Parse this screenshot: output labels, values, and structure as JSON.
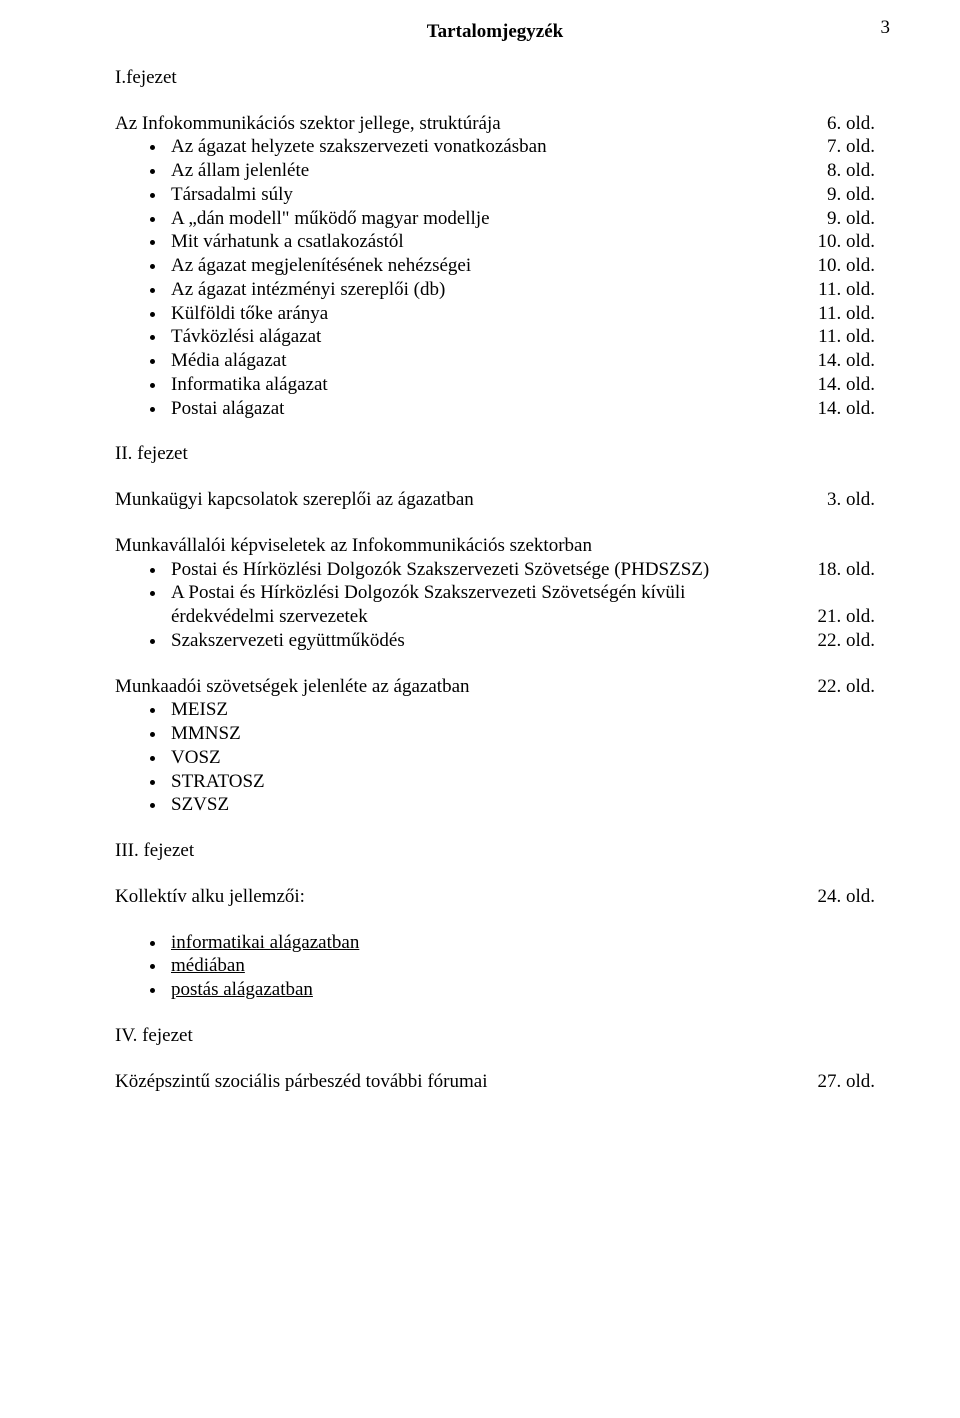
{
  "page_number": "3",
  "title": "Tartalomjegyzék",
  "chapters": {
    "chap1": {
      "heading": "I.fejezet",
      "lead": {
        "label": "Az Infokommunikációs szektor jellege, struktúrája",
        "pg": "6. old."
      },
      "items": [
        {
          "label": "Az ágazat helyzete szakszervezeti vonatkozásban",
          "pg": "7. old."
        },
        {
          "label": "Az állam jelenléte",
          "pg": "8. old."
        },
        {
          "label": "Társadalmi súly",
          "pg": "9. old."
        },
        {
          "label": "A „dán modell\" működő magyar modellje",
          "pg": "9. old."
        },
        {
          "label": "Mit várhatunk a csatlakozástól",
          "pg": "10. old."
        },
        {
          "label": "Az ágazat megjelenítésének nehézségei",
          "pg": "10. old."
        },
        {
          "label": "Az ágazat intézményi szereplői (db)",
          "pg": "11. old."
        },
        {
          "label": "Külföldi tőke aránya",
          "pg": "11. old."
        },
        {
          "label": "Távközlési alágazat",
          "pg": "11. old."
        },
        {
          "label": "Média alágazat",
          "pg": "14. old."
        },
        {
          "label": "Informatika alágazat",
          "pg": "14. old."
        },
        {
          "label": "Postai alágazat",
          "pg": "14. old."
        }
      ]
    },
    "chap2": {
      "heading": "II. fejezet",
      "line1": {
        "label": "Munkaügyi kapcsolatok szereplői az ágazatban",
        "pg": "3. old."
      },
      "sub1_lead": "Munkavállalói képviseletek az Infokommunikációs szektorban",
      "sub1_items": [
        {
          "label": "Postai és Hírközlési Dolgozók Szakszervezeti Szövetsége (PHDSZSZ)",
          "pg": "18. old."
        },
        {
          "wrap_main": "A Postai és Hírközlési Dolgozók Szakszervezeti Szövetségén kívüli",
          "wrap_cont": "érdekvédelmi szervezetek",
          "pg": "21. old."
        },
        {
          "label": "Szakszervezeti együttműködés",
          "pg": "22. old."
        }
      ],
      "sub2_line": {
        "label": "Munkaadói szövetségek jelenléte az ágazatban",
        "pg": "22. old."
      },
      "sub2_items": [
        {
          "label": "MEISZ"
        },
        {
          "label": "MMNSZ"
        },
        {
          "label": "VOSZ"
        },
        {
          "label": "STRATOSZ"
        },
        {
          "label": "SZVSZ"
        }
      ]
    },
    "chap3": {
      "heading": "III. fejezet",
      "line": {
        "label": "Kollektív alku jellemzői:",
        "pg": "24. old."
      },
      "items": [
        {
          "label": "informatikai alágazatban"
        },
        {
          "label": "médiában"
        },
        {
          "label": "postás alágazatban"
        }
      ]
    },
    "chap4": {
      "heading": "IV. fejezet",
      "line": {
        "label": "Középszintű szociális párbeszéd további fórumai",
        "pg": "27. old."
      }
    }
  }
}
